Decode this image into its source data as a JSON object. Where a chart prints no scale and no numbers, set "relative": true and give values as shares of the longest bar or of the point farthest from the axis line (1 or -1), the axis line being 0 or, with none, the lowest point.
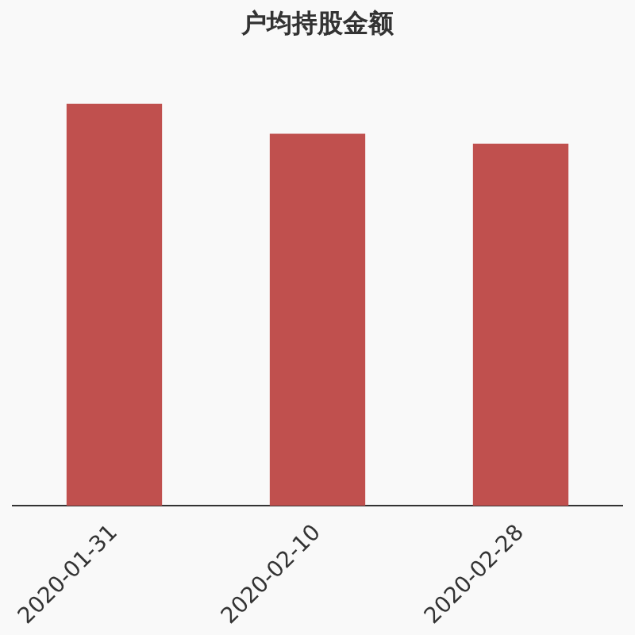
{
  "chart_data": {
    "type": "bar",
    "title": "户均持股金额",
    "relative": true,
    "categories": [
      "2020-01-31",
      "2020-02-10",
      "2020-02-28"
    ],
    "values": [
      1,
      0.925,
      0.9
    ],
    "color": "#c0504e",
    "grid": false,
    "legend": false
  }
}
